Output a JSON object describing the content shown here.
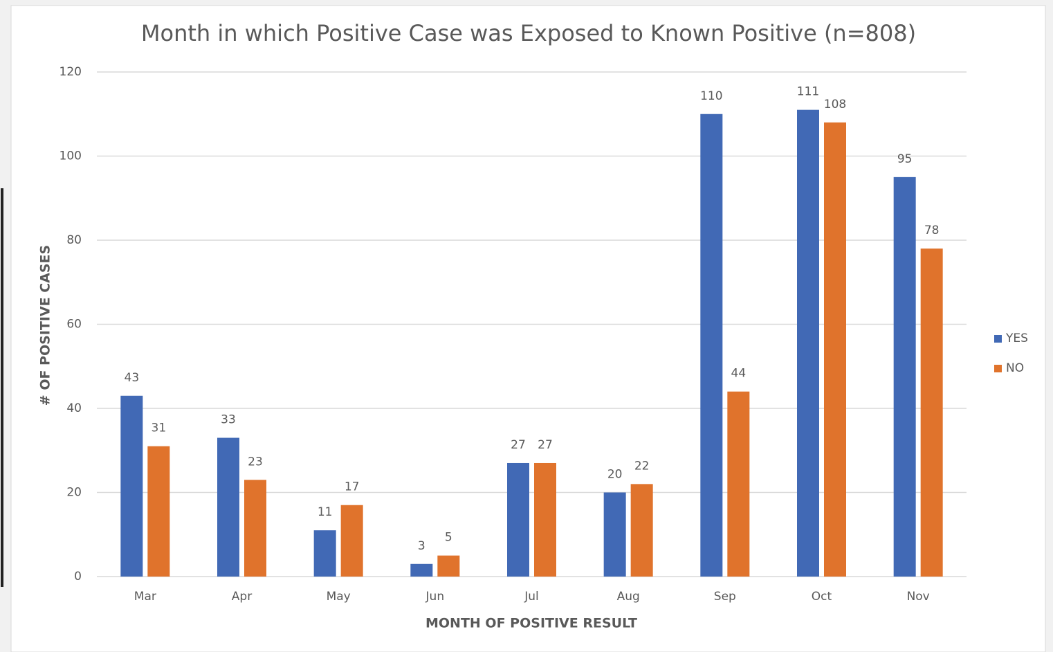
{
  "chart_data": {
    "type": "bar",
    "title": "Month in which Positive Case was Exposed to Known Positive (n=808)",
    "x_label": "MONTH OF POSITIVE RESULT",
    "y_label": "# OF POSITIVE CASES",
    "categories": [
      "Mar",
      "Apr",
      "May",
      "Jun",
      "Jul",
      "Aug",
      "Sep",
      "Oct",
      "Nov"
    ],
    "series": [
      {
        "name": "YES",
        "color": "#4169b5",
        "values": [
          43,
          33,
          11,
          3,
          27,
          20,
          110,
          111,
          95
        ]
      },
      {
        "name": "NO",
        "color": "#e0732c",
        "values": [
          31,
          23,
          17,
          5,
          27,
          22,
          44,
          108,
          78
        ]
      }
    ],
    "ylim": [
      0,
      120
    ],
    "yticks": [
      0,
      20,
      40,
      60,
      80,
      100,
      120
    ],
    "grid": true,
    "legend": "right"
  }
}
